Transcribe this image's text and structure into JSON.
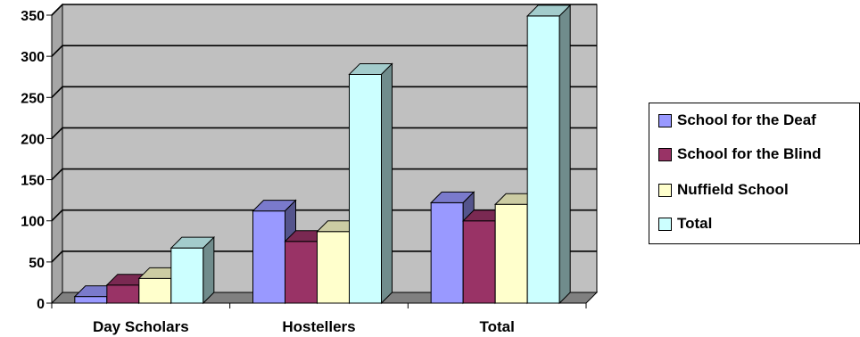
{
  "chart_data": {
    "type": "bar",
    "categories": [
      "Day Scholars",
      "Hostellers",
      "Total"
    ],
    "series": [
      {
        "name": "School for the Deaf",
        "values": [
          8,
          112,
          122
        ],
        "color": "#9999FF"
      },
      {
        "name": "School for the Blind",
        "values": [
          22,
          75,
          100
        ],
        "color": "#993366"
      },
      {
        "name": "Nuffield School",
        "values": [
          30,
          87,
          120
        ],
        "color": "#FFFFCC"
      },
      {
        "name": "Total",
        "values": [
          67,
          278,
          349
        ],
        "color": "#CCFFFF"
      }
    ],
    "ylim": [
      0,
      350
    ],
    "yticks": [
      "0",
      "50",
      "100",
      "150",
      "200",
      "250",
      "300",
      "350"
    ],
    "grid": true,
    "legend": "right",
    "style": "3d-column",
    "wall_color": "#C0C0C0",
    "floor_color": "#808080"
  }
}
